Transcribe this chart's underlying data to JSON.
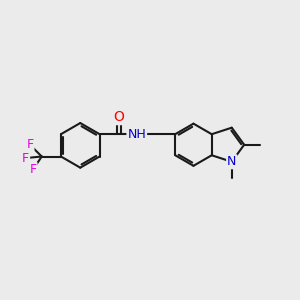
{
  "bg_color": "#ebebeb",
  "bond_color": "#1a1a1a",
  "bond_width": 1.5,
  "atom_colors": {
    "O": "#ff0000",
    "N": "#0000cd",
    "F": "#e800e8",
    "C": "#1a1a1a"
  },
  "xlim": [
    -4.5,
    5.0
  ],
  "ylim": [
    -2.5,
    2.5
  ],
  "figsize": [
    3.0,
    3.0
  ],
  "dpi": 100
}
